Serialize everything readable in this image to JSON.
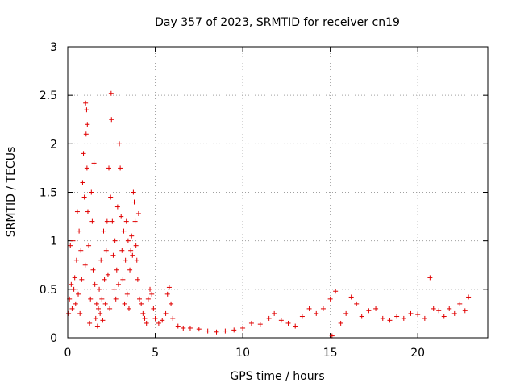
{
  "chart_data": {
    "type": "scatter",
    "title": "Day 357 of 2023, SRMTID for receiver cn19",
    "xlabel": "GPS time / hours",
    "ylabel": "SRMTID / TECUs",
    "xlim": [
      0,
      24
    ],
    "ylim": [
      0,
      3
    ],
    "xticks": [
      0,
      5,
      10,
      15,
      20
    ],
    "yticks": [
      0,
      0.5,
      1,
      1.5,
      2,
      2.5,
      3
    ],
    "grid": true,
    "marker": "+",
    "color": "#e00000",
    "series": [
      {
        "name": "cn19",
        "points": [
          [
            0.05,
            0.25
          ],
          [
            0.1,
            0.4
          ],
          [
            0.15,
            0.95
          ],
          [
            0.2,
            0.55
          ],
          [
            0.25,
            0.3
          ],
          [
            0.3,
            1.0
          ],
          [
            0.35,
            0.5
          ],
          [
            0.4,
            0.62
          ],
          [
            0.45,
            0.35
          ],
          [
            0.5,
            0.8
          ],
          [
            0.55,
            1.3
          ],
          [
            0.6,
            0.45
          ],
          [
            0.65,
            1.1
          ],
          [
            0.7,
            0.25
          ],
          [
            0.75,
            0.9
          ],
          [
            0.8,
            0.6
          ],
          [
            0.85,
            1.6
          ],
          [
            0.9,
            1.9
          ],
          [
            0.95,
            1.45
          ],
          [
            1.0,
            0.75
          ],
          [
            1.02,
            2.42
          ],
          [
            1.05,
            2.1
          ],
          [
            1.08,
            2.35
          ],
          [
            1.1,
            1.75
          ],
          [
            1.12,
            2.2
          ],
          [
            1.15,
            1.3
          ],
          [
            1.2,
            0.95
          ],
          [
            1.25,
            0.15
          ],
          [
            1.3,
            0.4
          ],
          [
            1.35,
            1.5
          ],
          [
            1.4,
            1.2
          ],
          [
            1.45,
            0.7
          ],
          [
            1.5,
            1.8
          ],
          [
            1.55,
            0.55
          ],
          [
            1.6,
            0.2
          ],
          [
            1.65,
            0.35
          ],
          [
            1.7,
            0.12
          ],
          [
            1.75,
            0.3
          ],
          [
            1.8,
            0.5
          ],
          [
            1.85,
            0.25
          ],
          [
            1.9,
            0.8
          ],
          [
            1.95,
            0.4
          ],
          [
            2.0,
            0.18
          ],
          [
            2.05,
            1.1
          ],
          [
            2.1,
            0.6
          ],
          [
            2.15,
            0.35
          ],
          [
            2.2,
            0.9
          ],
          [
            2.25,
            1.2
          ],
          [
            2.3,
            0.65
          ],
          [
            2.35,
            1.75
          ],
          [
            2.4,
            0.3
          ],
          [
            2.45,
            1.45
          ],
          [
            2.48,
            2.52
          ],
          [
            2.5,
            2.25
          ],
          [
            2.55,
            1.2
          ],
          [
            2.6,
            0.85
          ],
          [
            2.65,
            0.5
          ],
          [
            2.7,
            1.0
          ],
          [
            2.75,
            0.4
          ],
          [
            2.8,
            0.7
          ],
          [
            2.85,
            1.35
          ],
          [
            2.9,
            0.55
          ],
          [
            2.95,
            2.0
          ],
          [
            3.0,
            1.75
          ],
          [
            3.05,
            1.25
          ],
          [
            3.1,
            0.9
          ],
          [
            3.15,
            0.6
          ],
          [
            3.2,
            1.1
          ],
          [
            3.25,
            0.35
          ],
          [
            3.3,
            0.8
          ],
          [
            3.35,
            1.2
          ],
          [
            3.4,
            0.45
          ],
          [
            3.45,
            1.0
          ],
          [
            3.5,
            0.3
          ],
          [
            3.55,
            0.7
          ],
          [
            3.6,
            0.9
          ],
          [
            3.65,
            1.05
          ],
          [
            3.7,
            0.85
          ],
          [
            3.75,
            1.5
          ],
          [
            3.8,
            1.4
          ],
          [
            3.85,
            1.2
          ],
          [
            3.9,
            0.95
          ],
          [
            3.95,
            0.8
          ],
          [
            4.0,
            0.6
          ],
          [
            4.05,
            1.28
          ],
          [
            4.1,
            0.4
          ],
          [
            4.2,
            0.35
          ],
          [
            4.3,
            0.25
          ],
          [
            4.4,
            0.2
          ],
          [
            4.5,
            0.15
          ],
          [
            4.6,
            0.4
          ],
          [
            4.7,
            0.5
          ],
          [
            4.8,
            0.45
          ],
          [
            4.9,
            0.3
          ],
          [
            5.0,
            0.2
          ],
          [
            5.2,
            0.15
          ],
          [
            5.4,
            0.18
          ],
          [
            5.6,
            0.25
          ],
          [
            5.7,
            0.45
          ],
          [
            5.8,
            0.52
          ],
          [
            5.9,
            0.35
          ],
          [
            6.0,
            0.2
          ],
          [
            6.3,
            0.12
          ],
          [
            6.6,
            0.1
          ],
          [
            7.0,
            0.1
          ],
          [
            7.5,
            0.09
          ],
          [
            8.0,
            0.07
          ],
          [
            8.5,
            0.06
          ],
          [
            9.0,
            0.07
          ],
          [
            9.5,
            0.08
          ],
          [
            10.0,
            0.1
          ],
          [
            10.5,
            0.15
          ],
          [
            11.0,
            0.14
          ],
          [
            11.5,
            0.2
          ],
          [
            11.8,
            0.25
          ],
          [
            12.2,
            0.18
          ],
          [
            12.6,
            0.15
          ],
          [
            13.0,
            0.12
          ],
          [
            13.4,
            0.22
          ],
          [
            13.8,
            0.3
          ],
          [
            14.2,
            0.25
          ],
          [
            14.6,
            0.3
          ],
          [
            15.0,
            0.4
          ],
          [
            15.1,
            0.02
          ],
          [
            15.3,
            0.48
          ],
          [
            15.6,
            0.15
          ],
          [
            15.9,
            0.25
          ],
          [
            16.2,
            0.42
          ],
          [
            16.5,
            0.35
          ],
          [
            16.8,
            0.22
          ],
          [
            17.2,
            0.28
          ],
          [
            17.6,
            0.3
          ],
          [
            18.0,
            0.2
          ],
          [
            18.4,
            0.18
          ],
          [
            18.8,
            0.22
          ],
          [
            19.2,
            0.2
          ],
          [
            19.6,
            0.25
          ],
          [
            20.0,
            0.24
          ],
          [
            20.4,
            0.2
          ],
          [
            20.7,
            0.62
          ],
          [
            20.9,
            0.3
          ],
          [
            21.2,
            0.28
          ],
          [
            21.5,
            0.22
          ],
          [
            21.8,
            0.3
          ],
          [
            22.1,
            0.25
          ],
          [
            22.4,
            0.35
          ],
          [
            22.7,
            0.28
          ],
          [
            22.9,
            0.42
          ]
        ]
      }
    ]
  }
}
